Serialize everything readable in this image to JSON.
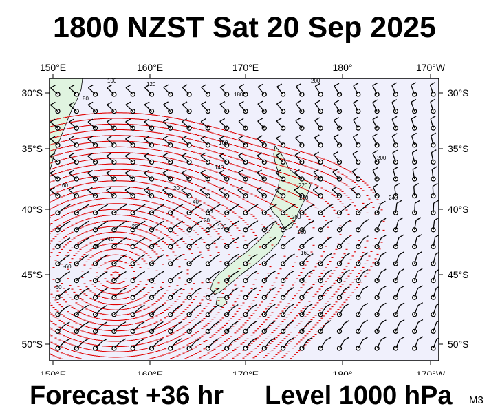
{
  "title": "1800 NZST Sat 20 Sep 2025",
  "footer": {
    "forecast": "Forecast +36 hr",
    "level": "Level 1000 hPa",
    "product_code": "M3"
  },
  "colors": {
    "ocean": "#f0f0fc",
    "land": "#e0f4e0",
    "contour": "#e00000",
    "barb": "#000000"
  },
  "map": {
    "lon_labels": [
      "150°E",
      "160°E",
      "170°E",
      "180°",
      "170°W"
    ],
    "lat_labels": [
      "30°S",
      "35°S",
      "40°S",
      "45°S",
      "50°S"
    ],
    "contour_labels": [
      "200",
      "120",
      "80",
      "100",
      "180",
      "200",
      "160",
      "140",
      "220",
      "240",
      "240",
      "220",
      "200",
      "60",
      "0",
      "20",
      "20",
      "40",
      "60",
      "100",
      "-20",
      "-60",
      "-40",
      "-60",
      "-60",
      "160",
      "100"
    ]
  }
}
